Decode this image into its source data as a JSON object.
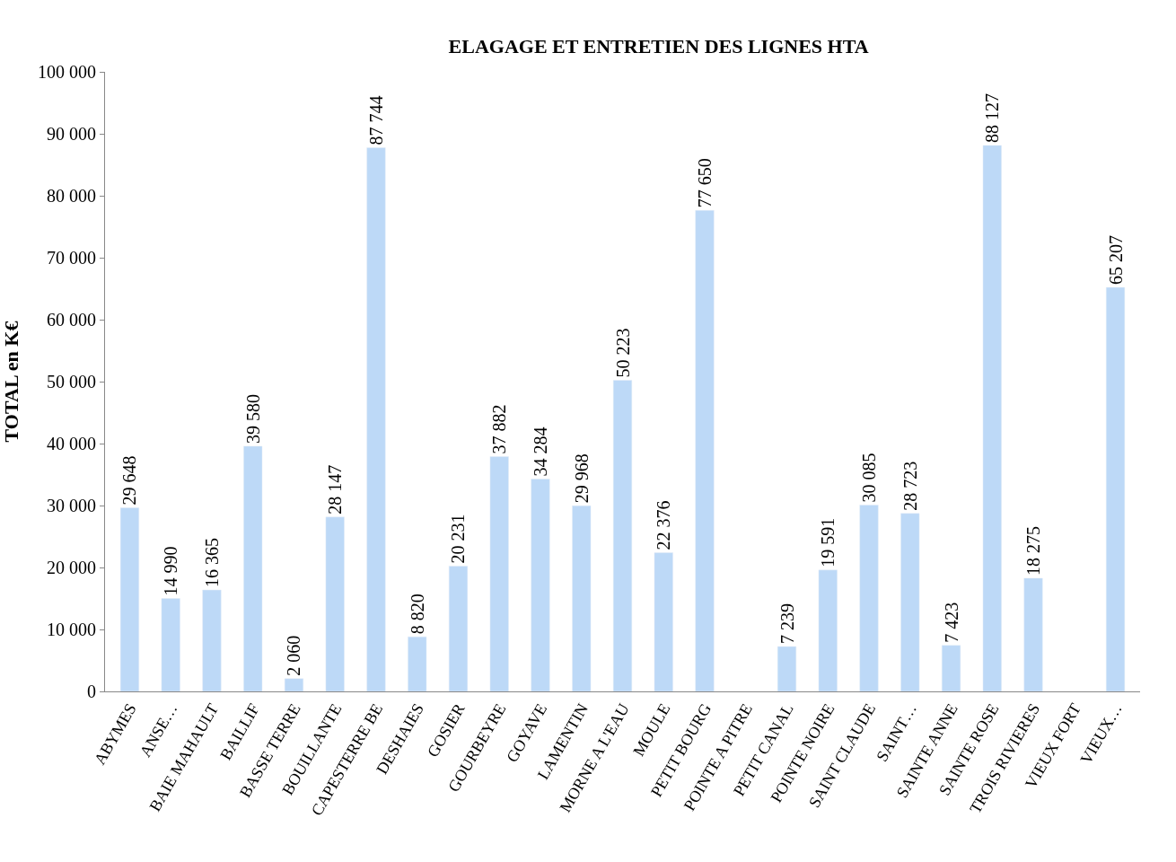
{
  "chart_data": {
    "type": "bar",
    "title": "ELAGAGE ET ENTRETIEN DES LIGNES HTA",
    "ylabel": "TOTAL en K€",
    "categories": [
      "ABYMES",
      "ANSE…",
      "BAIE MAHAULT",
      "BAILLIF",
      "BASSE TERRE",
      "BOUILLANTE",
      "CAPESTERRE BE",
      "DESHAIES",
      "GOSIER",
      "GOURBEYRE",
      "GOYAVE",
      "LAMENTIN",
      "MORNE A L'EAU",
      "MOULE",
      "PETIT BOURG",
      "POINTE A PITRE",
      "PETIT CANAL",
      "POINTE NOIRE",
      "SAINT CLAUDE",
      "SAINT…",
      "SAINTE ANNE",
      "SAINTE ROSE",
      "TROIS RIVIERES",
      "VIEUX FORT",
      "VIEUX…"
    ],
    "values": [
      29648,
      14990,
      16365,
      39580,
      2060,
      28147,
      87744,
      8820,
      20231,
      37882,
      34284,
      29968,
      50223,
      22376,
      77650,
      null,
      7239,
      19591,
      30085,
      28723,
      7423,
      88127,
      18275,
      null,
      65207
    ],
    "value_labels": [
      "29 648",
      "14 990",
      "16 365",
      "39 580",
      "2 060",
      "28 147",
      "87 744",
      "8 820",
      "20 231",
      "37 882",
      "34 284",
      "29 968",
      "50 223",
      "22 376",
      "77 650",
      null,
      "7 239",
      "19 591",
      "30 085",
      "28 723",
      "7 423",
      "88 127",
      "18 275",
      null,
      "65 207"
    ],
    "color": "#bdd9f7",
    "ylim": [
      0,
      100000
    ],
    "yticks": [
      {
        "value": 0,
        "label": "0"
      },
      {
        "value": 10000,
        "label": "10 000"
      },
      {
        "value": 20000,
        "label": "20 000"
      },
      {
        "value": 30000,
        "label": "30 000"
      },
      {
        "value": 40000,
        "label": "40 000"
      },
      {
        "value": 50000,
        "label": "50 000"
      },
      {
        "value": 60000,
        "label": "60 000"
      },
      {
        "value": 70000,
        "label": "70 000"
      },
      {
        "value": 80000,
        "label": "80 000"
      },
      {
        "value": 90000,
        "label": "90 000"
      },
      {
        "value": 100000,
        "label": "100 000"
      }
    ],
    "grid": false
  }
}
